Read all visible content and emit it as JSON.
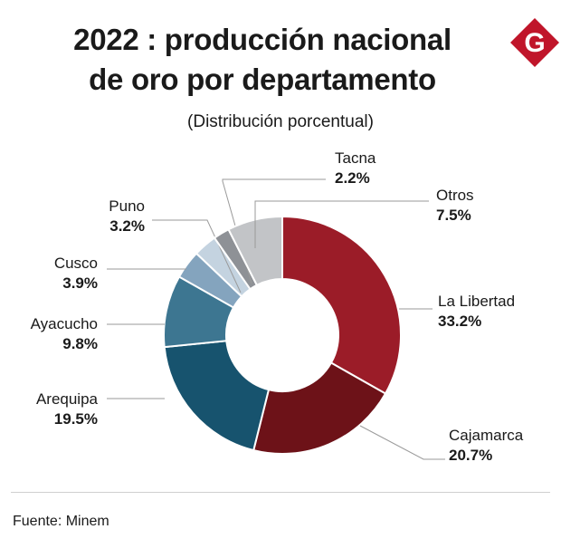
{
  "title_line1": "2022 : producción nacional",
  "title_line2": "de oro por departamento",
  "subtitle": "(Distribución porcentual)",
  "logo_letter": "G",
  "logo_color": "#c0152a",
  "source": "Fuente: Minem",
  "chart_data": {
    "type": "pie",
    "donut": true,
    "title": "2022 : producción nacional de oro por departamento",
    "subtitle": "(Distribución porcentual)",
    "slices": [
      {
        "label": "La Libertad",
        "value": 33.2,
        "display": "33.2%",
        "color": "#9b1c28"
      },
      {
        "label": "Cajamarca",
        "value": 20.7,
        "display": "20.7%",
        "color": "#6d1218"
      },
      {
        "label": "Arequipa",
        "value": 19.5,
        "display": "19.5%",
        "color": "#17536e"
      },
      {
        "label": "Ayacucho",
        "value": 9.8,
        "display": "9.8%",
        "color": "#3d7691"
      },
      {
        "label": "Cusco",
        "value": 3.9,
        "display": "3.9%",
        "color": "#84a4be"
      },
      {
        "label": "Puno",
        "value": 3.2,
        "display": "3.2%",
        "color": "#c4d3e0"
      },
      {
        "label": "Tacna",
        "value": 2.2,
        "display": "2.2%",
        "color": "#8e9196"
      },
      {
        "label": "Otros",
        "value": 7.5,
        "display": "7.5%",
        "color": "#c2c4c7"
      }
    ]
  }
}
